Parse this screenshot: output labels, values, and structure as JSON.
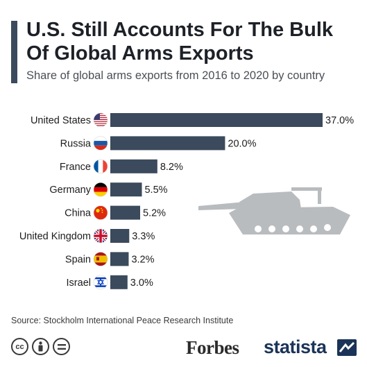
{
  "title": "U.S. Still Accounts For The Bulk Of Global Arms Exports",
  "subtitle": "Share of global arms exports from 2016 to 2020 by country",
  "source": "Source: Stockholm International Peace Research Institute",
  "brand": {
    "forbes": "Forbes",
    "statista": "statista"
  },
  "license_icons": [
    "cc-icon",
    "attribution-icon",
    "no-derivatives-icon"
  ],
  "colors": {
    "bar": "#3b4a5c",
    "accent": "#3b4a5c",
    "tank": "#b9bcbf"
  },
  "chart_data": {
    "type": "bar",
    "orientation": "horizontal",
    "categories": [
      "United States",
      "Russia",
      "France",
      "Germany",
      "China",
      "United Kingdom",
      "Spain",
      "Israel"
    ],
    "values": [
      37.0,
      20.0,
      8.2,
      5.5,
      5.2,
      3.3,
      3.2,
      3.0
    ],
    "value_labels": [
      "37.0%",
      "20.0%",
      "8.2%",
      "5.5%",
      "5.2%",
      "3.3%",
      "3.2%",
      "3.0%"
    ],
    "flags": [
      "us-flag-icon",
      "russia-flag-icon",
      "france-flag-icon",
      "germany-flag-icon",
      "china-flag-icon",
      "uk-flag-icon",
      "spain-flag-icon",
      "israel-flag-icon"
    ],
    "xlim": [
      0,
      37.0
    ],
    "grid": false
  }
}
